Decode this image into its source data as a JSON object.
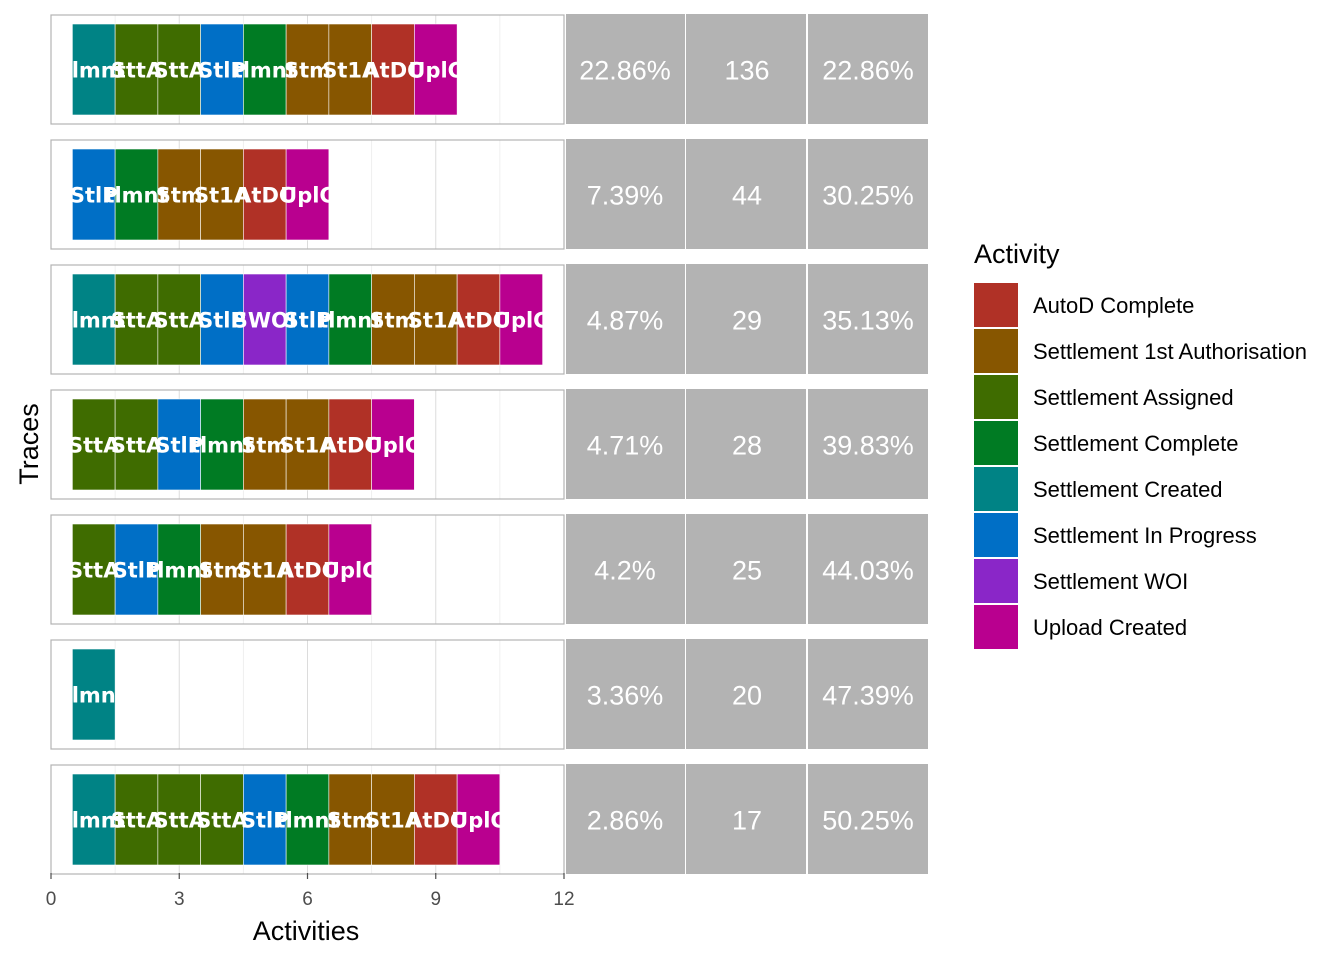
{
  "chart_data": {
    "type": "bar",
    "subtype": "trace-explorer",
    "xlabel": "Activities",
    "ylabel": "Traces",
    "xlim": [
      0,
      12
    ],
    "xticks": [
      "0",
      "3",
      "6",
      "9",
      "12"
    ],
    "grid": true,
    "legend_position": "right",
    "legend": {
      "title": "Activity",
      "entries": [
        {
          "name": "AutoD Complete",
          "color": "#B03126"
        },
        {
          "name": "Settlement 1st Authorisation",
          "color": "#875600"
        },
        {
          "name": "Settlement Assigned",
          "color": "#3F6C00"
        },
        {
          "name": "Settlement Complete",
          "color": "#007B23"
        },
        {
          "name": "Settlement Created",
          "color": "#008385"
        },
        {
          "name": "Settlement In Progress",
          "color": "#006FC6"
        },
        {
          "name": "Settlement WOI",
          "color": "#8A26C8"
        },
        {
          "name": "Upload Created",
          "color": "#B9008F"
        }
      ]
    },
    "traces": [
      {
        "activities": [
          "Settlement Created",
          "Settlement Assigned",
          "Settlement Assigned",
          "Settlement In Progress",
          "Settlement Complete",
          "Settlement 1st Authorisation",
          "Settlement 1st Authorisation",
          "AutoD Complete",
          "Upload Created"
        ],
        "labels": [
          "tlmnt",
          "SttA",
          "SttA",
          "StlP",
          "tlmnt",
          "Stm",
          "St1A",
          "AtDC",
          "UplC"
        ],
        "relative_frequency": "22.86%",
        "absolute_frequency": "136",
        "cumulative": "22.86%"
      },
      {
        "activities": [
          "Settlement In Progress",
          "Settlement Complete",
          "Settlement 1st Authorisation",
          "Settlement 1st Authorisation",
          "AutoD Complete",
          "Upload Created"
        ],
        "labels": [
          "StlP",
          "tlmnt",
          "Stm",
          "St1A",
          "AtDC",
          "UplC"
        ],
        "relative_frequency": "7.39%",
        "absolute_frequency": "44",
        "cumulative": "30.25%"
      },
      {
        "activities": [
          "Settlement Created",
          "Settlement Assigned",
          "Settlement Assigned",
          "Settlement In Progress",
          "Settlement WOI",
          "Settlement In Progress",
          "Settlement Complete",
          "Settlement 1st Authorisation",
          "Settlement 1st Authorisation",
          "AutoD Complete",
          "Upload Created"
        ],
        "labels": [
          "tlmnt",
          "SttA",
          "SttA",
          "StlP",
          "SWOI",
          "StlP",
          "tlmnt",
          "Stm",
          "St1A",
          "AtDC",
          "UplC"
        ],
        "relative_frequency": "4.87%",
        "absolute_frequency": "29",
        "cumulative": "35.13%"
      },
      {
        "activities": [
          "Settlement Assigned",
          "Settlement Assigned",
          "Settlement In Progress",
          "Settlement Complete",
          "Settlement 1st Authorisation",
          "Settlement 1st Authorisation",
          "AutoD Complete",
          "Upload Created"
        ],
        "labels": [
          "SttA",
          "SttA",
          "StlP",
          "tlmnt",
          "Stm",
          "St1A",
          "AtDC",
          "UplC"
        ],
        "relative_frequency": "4.71%",
        "absolute_frequency": "28",
        "cumulative": "39.83%"
      },
      {
        "activities": [
          "Settlement Assigned",
          "Settlement In Progress",
          "Settlement Complete",
          "Settlement 1st Authorisation",
          "Settlement 1st Authorisation",
          "AutoD Complete",
          "Upload Created"
        ],
        "labels": [
          "SttA",
          "StlP",
          "tlmnt",
          "Stm",
          "St1A",
          "AtDC",
          "UplC"
        ],
        "relative_frequency": "4.2%",
        "absolute_frequency": "25",
        "cumulative": "44.03%"
      },
      {
        "activities": [
          "Settlement Created"
        ],
        "labels": [
          "tlmnt"
        ],
        "relative_frequency": "3.36%",
        "absolute_frequency": "20",
        "cumulative": "47.39%"
      },
      {
        "activities": [
          "Settlement Created",
          "Settlement Assigned",
          "Settlement Assigned",
          "Settlement Assigned",
          "Settlement In Progress",
          "Settlement Complete",
          "Settlement 1st Authorisation",
          "Settlement 1st Authorisation",
          "AutoD Complete",
          "Upload Created"
        ],
        "labels": [
          "tlmnt",
          "SttA",
          "SttA",
          "SttA",
          "StlP",
          "tlmnt",
          "Stm",
          "St1A",
          "AtDC",
          "UplC"
        ],
        "relative_frequency": "2.86%",
        "absolute_frequency": "17",
        "cumulative": "50.25%"
      }
    ]
  }
}
